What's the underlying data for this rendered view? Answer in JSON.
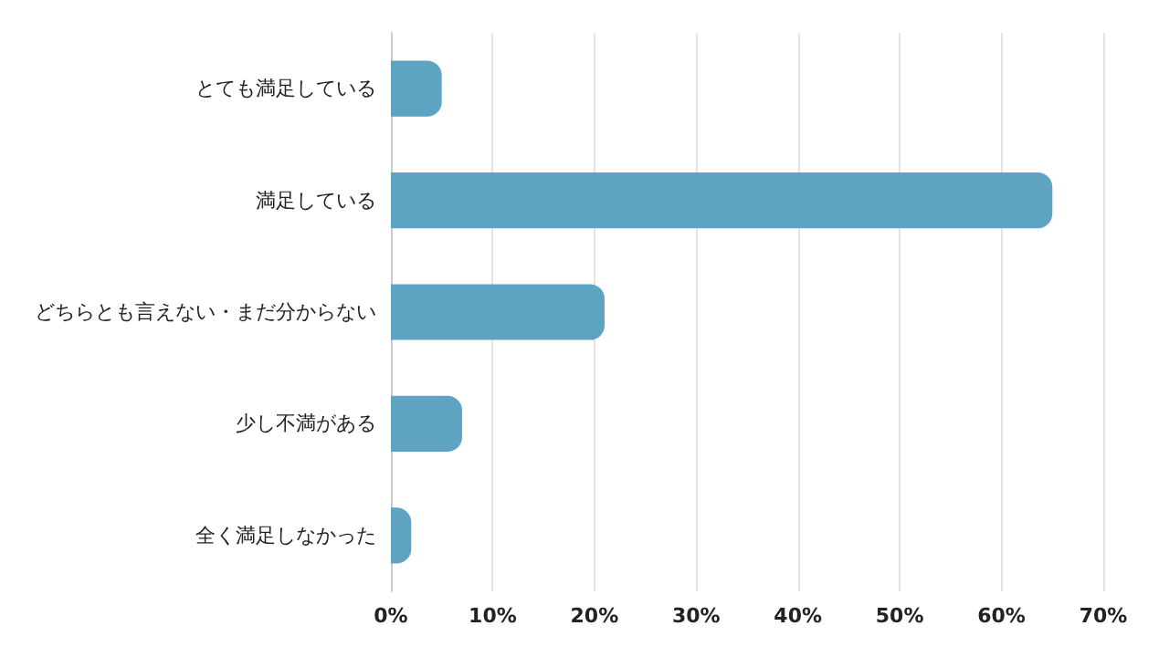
{
  "chart_data": {
    "type": "bar",
    "orientation": "horizontal",
    "categories": [
      "とても満足している",
      "満足している",
      "どちらとも言えない・まだ分からない",
      "少し不満がある",
      "全く満足しなかった"
    ],
    "values": [
      5,
      65,
      21,
      7,
      2
    ],
    "color": "#5fa3c2",
    "xlim": [
      0,
      70
    ],
    "xticks": [
      {
        "value": 0,
        "label": "0%"
      },
      {
        "value": 10,
        "label": "10%"
      },
      {
        "value": 20,
        "label": "20%"
      },
      {
        "value": 30,
        "label": "30%"
      },
      {
        "value": 40,
        "label": "40%"
      },
      {
        "value": 50,
        "label": "50%"
      },
      {
        "value": 60,
        "label": "60%"
      },
      {
        "value": 70,
        "label": "70%"
      }
    ],
    "grid": "x"
  }
}
